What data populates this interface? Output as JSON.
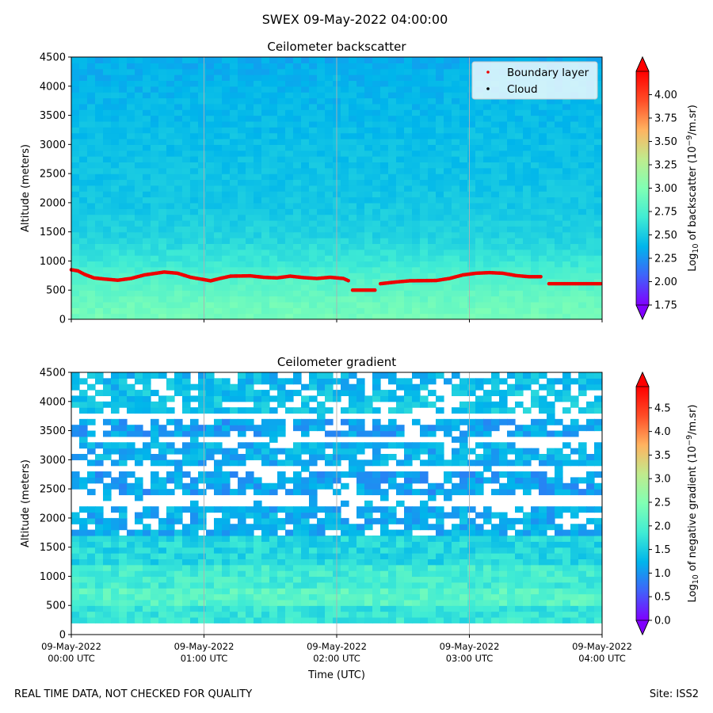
{
  "page": {
    "title": "SWEX 09-May-2022 04:00:00",
    "footer_left": "REAL TIME DATA, NOT CHECKED FOR QUALITY",
    "footer_right": "Site: ISS2"
  },
  "colors": {
    "boundary_layer": "#ee0000",
    "cloud": "#000000",
    "grid": "#b0b0b0",
    "colormap": [
      "#8000ff",
      "#4062fa",
      "#00b5eb",
      "#40ecd4",
      "#80ffb4",
      "#c0eb8d",
      "#ffb360",
      "#ff4d27",
      "#ff0000"
    ]
  },
  "chart_data": [
    {
      "type": "heatmap",
      "id": "backscatter",
      "title": "Ceilometer backscatter",
      "ylabel": "Altitude (meters)",
      "ylim": [
        0,
        4500
      ],
      "yticks": [
        "0",
        "500",
        "1000",
        "1500",
        "2000",
        "2500",
        "3000",
        "3500",
        "4000",
        "4500"
      ],
      "ytick_values": [
        0,
        500,
        1000,
        1500,
        2000,
        2500,
        3000,
        3500,
        4000,
        4500
      ],
      "xlim_hours": [
        0,
        4
      ],
      "xtick_hours": [
        0,
        1,
        2,
        3,
        4
      ],
      "x_tick_labels_shown": false,
      "legend_location": "upper-right",
      "legend": [
        {
          "label": "Boundary layer",
          "color": "#ee0000"
        },
        {
          "label": "Cloud",
          "color": "#000000"
        }
      ],
      "colorbar": {
        "label_prefix": "Log",
        "label_sub": "10",
        "label_main": " of backscatter (10",
        "label_sup": "−9",
        "label_suffix": "/m.sr)",
        "range": [
          1.75,
          4.25
        ],
        "extend": "both",
        "ticks": [
          "1.75",
          "2.00",
          "2.25",
          "2.50",
          "2.75",
          "3.00",
          "3.25",
          "3.50",
          "3.75",
          "4.00"
        ],
        "tick_values": [
          1.75,
          2.0,
          2.25,
          2.5,
          2.75,
          3.0,
          3.25,
          3.5,
          3.75,
          4.0
        ]
      },
      "profile_by_altitude": [
        {
          "alt": 0,
          "value": 2.95
        },
        {
          "alt": 300,
          "value": 2.9
        },
        {
          "alt": 700,
          "value": 2.78
        },
        {
          "alt": 1000,
          "value": 2.66
        },
        {
          "alt": 1400,
          "value": 2.55
        },
        {
          "alt": 2000,
          "value": 2.47
        },
        {
          "alt": 3000,
          "value": 2.43
        },
        {
          "alt": 4000,
          "value": 2.38
        },
        {
          "alt": 4500,
          "value": 2.34
        }
      ],
      "boundary_layer": [
        {
          "t": 0.0,
          "alt": 850
        },
        {
          "t": 0.05,
          "alt": 830
        },
        {
          "t": 0.1,
          "alt": 770
        },
        {
          "t": 0.17,
          "alt": 710
        },
        {
          "t": 0.25,
          "alt": 690
        },
        {
          "t": 0.35,
          "alt": 670
        },
        {
          "t": 0.45,
          "alt": 700
        },
        {
          "t": 0.55,
          "alt": 760
        },
        {
          "t": 0.7,
          "alt": 810
        },
        {
          "t": 0.8,
          "alt": 790
        },
        {
          "t": 0.9,
          "alt": 720
        },
        {
          "t": 1.0,
          "alt": 680
        },
        {
          "t": 1.05,
          "alt": 660
        },
        {
          "t": 1.12,
          "alt": 700
        },
        {
          "t": 1.2,
          "alt": 740
        },
        {
          "t": 1.35,
          "alt": 745
        },
        {
          "t": 1.45,
          "alt": 720
        },
        {
          "t": 1.55,
          "alt": 710
        },
        {
          "t": 1.65,
          "alt": 740
        },
        {
          "t": 1.75,
          "alt": 715
        },
        {
          "t": 1.85,
          "alt": 700
        },
        {
          "t": 1.95,
          "alt": 720
        },
        {
          "t": 2.05,
          "alt": 700
        },
        {
          "t": 2.1,
          "alt": 650
        },
        {
          "t": 2.11,
          "alt": null
        },
        {
          "t": 2.12,
          "alt": 500
        },
        {
          "t": 2.3,
          "alt": 500
        },
        {
          "t": 2.31,
          "alt": null
        },
        {
          "t": 2.33,
          "alt": 610
        },
        {
          "t": 2.45,
          "alt": 640
        },
        {
          "t": 2.55,
          "alt": 660
        },
        {
          "t": 2.75,
          "alt": 665
        },
        {
          "t": 2.85,
          "alt": 700
        },
        {
          "t": 2.95,
          "alt": 760
        },
        {
          "t": 3.05,
          "alt": 790
        },
        {
          "t": 3.15,
          "alt": 800
        },
        {
          "t": 3.25,
          "alt": 790
        },
        {
          "t": 3.35,
          "alt": 750
        },
        {
          "t": 3.45,
          "alt": 730
        },
        {
          "t": 3.55,
          "alt": 730
        },
        {
          "t": 3.56,
          "alt": null
        },
        {
          "t": 3.6,
          "alt": 610
        },
        {
          "t": 3.8,
          "alt": 610
        },
        {
          "t": 4.0,
          "alt": 610
        }
      ]
    },
    {
      "type": "heatmap",
      "id": "gradient",
      "title": "Ceilometer gradient",
      "ylabel": "Altitude (meters)",
      "xlabel": "Time (UTC)",
      "ylim": [
        0,
        4500
      ],
      "yticks": [
        "0",
        "500",
        "1000",
        "1500",
        "2000",
        "2500",
        "3000",
        "3500",
        "4000",
        "4500"
      ],
      "ytick_values": [
        0,
        500,
        1000,
        1500,
        2000,
        2500,
        3000,
        3500,
        4000,
        4500
      ],
      "xlim_hours": [
        0,
        4
      ],
      "xtick_hours": [
        0,
        1,
        2,
        3,
        4
      ],
      "xtick_labels": [
        {
          "date": "09-May-2022",
          "time": "00:00 UTC"
        },
        {
          "date": "09-May-2022",
          "time": "01:00 UTC"
        },
        {
          "date": "09-May-2022",
          "time": "02:00 UTC"
        },
        {
          "date": "09-May-2022",
          "time": "03:00 UTC"
        },
        {
          "date": "09-May-2022",
          "time": "04:00 UTC"
        }
      ],
      "colorbar": {
        "label_prefix": "Log",
        "label_sub": "10",
        "label_main": " of negative gradient (10",
        "label_sup": "−9",
        "label_suffix": "/m.sr)",
        "range": [
          0.0,
          4.95
        ],
        "extend": "both",
        "ticks": [
          "0.0",
          "0.5",
          "1.0",
          "1.5",
          "2.0",
          "2.5",
          "3.0",
          "3.5",
          "4.0",
          "4.5"
        ],
        "tick_values": [
          0,
          0.5,
          1.0,
          1.5,
          2.0,
          2.5,
          3.0,
          3.5,
          4.0,
          4.5
        ]
      },
      "min_altitude_m": 180,
      "bands": [
        {
          "lo": 180,
          "hi": 500,
          "value": 1.8
        },
        {
          "lo": 500,
          "hi": 800,
          "value": 2.1
        },
        {
          "lo": 800,
          "hi": 1250,
          "value": 1.9
        },
        {
          "lo": 1250,
          "hi": 1750,
          "value": 1.6
        },
        {
          "lo": 1750,
          "hi": 2250,
          "value": 1.2
        },
        {
          "lo": 2450,
          "hi": 2850,
          "value": 1.1
        },
        {
          "lo": 2950,
          "hi": 3350,
          "value": 1.2
        },
        {
          "lo": 3400,
          "hi": 3700,
          "value": 1.1
        },
        {
          "lo": 3800,
          "hi": 4200,
          "value": 1.4
        },
        {
          "lo": 4250,
          "hi": 4500,
          "value": 1.3
        }
      ]
    }
  ]
}
